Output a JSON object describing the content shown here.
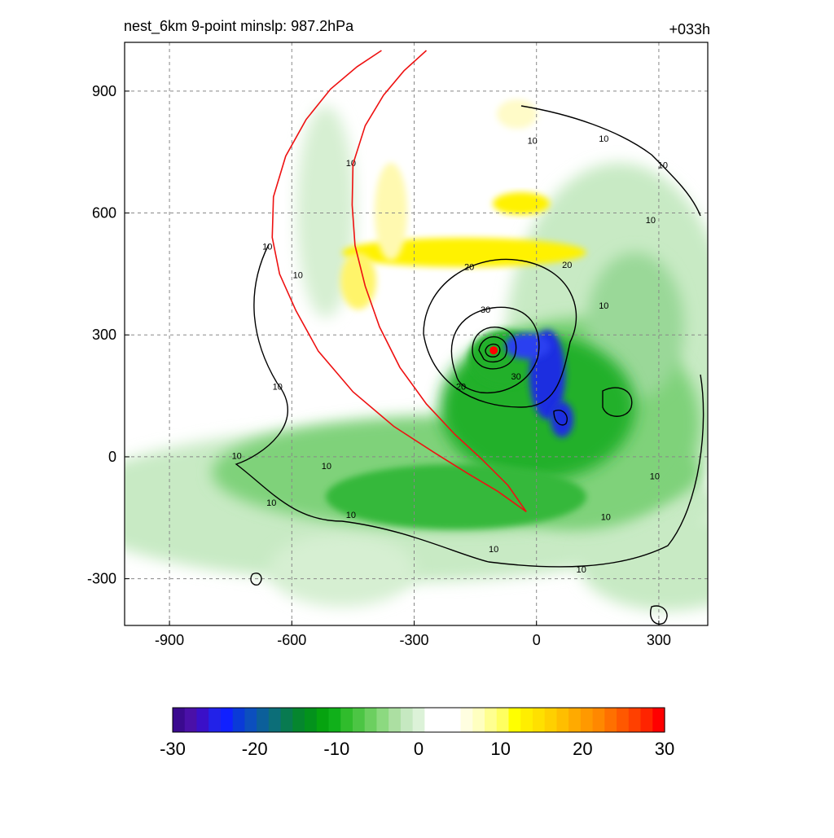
{
  "chart_data": {
    "type": "heatmap",
    "title": "nest_6km  9-point minslp: 987.2hPa",
    "timestamp": "+033h",
    "xlim": [
      -1010,
      420
    ],
    "ylim": [
      -415,
      1020
    ],
    "xticks": [
      -900,
      -600,
      -300,
      0,
      300
    ],
    "yticks": [
      900,
      600,
      300,
      0,
      -300
    ],
    "grid": true,
    "colorbar": {
      "min": -30,
      "max": 30,
      "ticks": [
        -30,
        -20,
        -10,
        0,
        10,
        20,
        30
      ],
      "colors": [
        "#3a0a8f",
        "#4a10a8",
        "#3a10c8",
        "#2222e8",
        "#1020ff",
        "#0a3ad8",
        "#0c4fbe",
        "#0c5f9a",
        "#0c6e78",
        "#087a50",
        "#05862e",
        "#03921c",
        "#06a30f",
        "#10b01a",
        "#30bc2c",
        "#4cc544",
        "#6ccf60",
        "#8cd980",
        "#acdfa2",
        "#c6e9c1",
        "#dcf2d8",
        "#ffffff",
        "#ffffff",
        "#ffffff",
        "#fffee0",
        "#ffffc0",
        "#ffff90",
        "#ffff60",
        "#ffff00",
        "#ffee00",
        "#ffe000",
        "#ffd000",
        "#ffbe00",
        "#ffaa00",
        "#ff9900",
        "#ff8800",
        "#ff7000",
        "#ff5800",
        "#ff4000",
        "#ff2400",
        "#ff0000"
      ]
    },
    "contour_labels": [
      {
        "text": "10",
        "x": -660,
        "y": 510
      },
      {
        "text": "10",
        "x": -585,
        "y": 440
      },
      {
        "text": "10",
        "x": -455,
        "y": 715
      },
      {
        "text": "10",
        "x": -635,
        "y": 165
      },
      {
        "text": "10",
        "x": -735,
        "y": -5
      },
      {
        "text": "10",
        "x": -515,
        "y": -30
      },
      {
        "text": "10",
        "x": -650,
        "y": -120
      },
      {
        "text": "10",
        "x": -455,
        "y": -150
      },
      {
        "text": "10",
        "x": -10,
        "y": 770
      },
      {
        "text": "10",
        "x": 165,
        "y": 775
      },
      {
        "text": "10",
        "x": 310,
        "y": 710
      },
      {
        "text": "10",
        "x": 280,
        "y": 575
      },
      {
        "text": "10",
        "x": 165,
        "y": 365
      },
      {
        "text": "10",
        "x": 290,
        "y": -55
      },
      {
        "text": "10",
        "x": 170,
        "y": -155
      },
      {
        "text": "10",
        "x": -105,
        "y": -235
      },
      {
        "text": "10",
        "x": 110,
        "y": -285
      },
      {
        "text": "20",
        "x": -165,
        "y": 460
      },
      {
        "text": "20",
        "x": 75,
        "y": 465
      },
      {
        "text": "20",
        "x": -185,
        "y": 165
      },
      {
        "text": "30",
        "x": -125,
        "y": 355
      },
      {
        "text": "30",
        "x": -50,
        "y": 190
      }
    ],
    "track": {
      "outer": [
        [
          -380,
          1000
        ],
        [
          -440,
          960
        ],
        [
          -505,
          905
        ],
        [
          -565,
          830
        ],
        [
          -615,
          740
        ],
        [
          -645,
          640
        ],
        [
          -648,
          540
        ],
        [
          -630,
          450
        ],
        [
          -590,
          360
        ],
        [
          -535,
          260
        ],
        [
          -450,
          160
        ],
        [
          -350,
          75
        ],
        [
          -250,
          10
        ],
        [
          -170,
          -40
        ],
        [
          -95,
          -85
        ],
        [
          -25,
          -135
        ]
      ],
      "inner": [
        [
          -270,
          1000
        ],
        [
          -325,
          950
        ],
        [
          -375,
          890
        ],
        [
          -420,
          815
        ],
        [
          -450,
          720
        ],
        [
          -452,
          620
        ],
        [
          -445,
          520
        ],
        [
          -420,
          420
        ],
        [
          -385,
          320
        ],
        [
          -335,
          220
        ],
        [
          -270,
          130
        ],
        [
          -200,
          55
        ],
        [
          -135,
          -5
        ],
        [
          -70,
          -70
        ],
        [
          -25,
          -135
        ]
      ]
    },
    "storm_center": {
      "x": -105,
      "y": 262
    }
  }
}
